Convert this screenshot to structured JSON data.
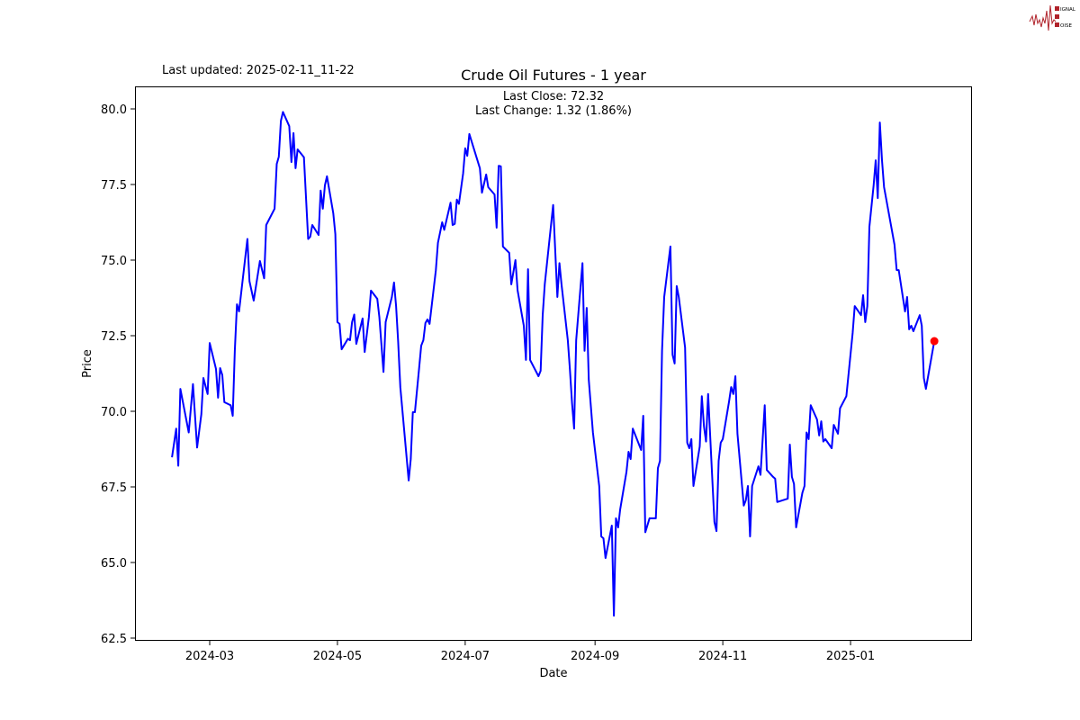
{
  "header": {
    "last_updated": "Last updated: 2025-02-11_11-22",
    "logo_text": "SIGNAL 2 NOISE"
  },
  "chart_data": {
    "type": "line",
    "title": "Crude Oil Futures - 1 year",
    "annotation_lines": [
      "Last Close: 72.32",
      "Last Change: 1.32 (1.86%)"
    ],
    "xlabel": "Date",
    "ylabel": "Price",
    "xlim": [
      "2024-02-05",
      "2025-02-21"
    ],
    "ylim": [
      62.3,
      80.7
    ],
    "x_ticks": [
      "2024-03",
      "2024-05",
      "2024-07",
      "2024-09",
      "2024-11",
      "2025-01"
    ],
    "y_ticks": [
      "62.5",
      "65.0",
      "67.5",
      "70.0",
      "72.5",
      "75.0",
      "77.5",
      "80.0"
    ],
    "grid": false,
    "line_color": "#0000ff",
    "marker_color": "#ff0000",
    "last_point": {
      "date": "2025-02-10",
      "value": 72.32
    },
    "series": [
      {
        "dates": [
          "2024-02-12",
          "2024-02-14",
          "2024-02-15",
          "2024-02-16",
          "2024-02-20",
          "2024-02-22",
          "2024-02-24",
          "2024-02-26",
          "2024-02-27",
          "2024-02-29",
          "2024-03-01",
          "2024-03-04",
          "2024-03-05",
          "2024-03-06",
          "2024-03-07",
          "2024-03-08",
          "2024-03-11",
          "2024-03-12",
          "2024-03-13",
          "2024-03-14",
          "2024-03-15",
          "2024-03-19",
          "2024-03-20",
          "2024-03-22",
          "2024-03-25",
          "2024-03-27",
          "2024-03-28",
          "2024-04-01",
          "2024-04-02",
          "2024-04-03",
          "2024-04-04",
          "2024-04-05",
          "2024-04-08",
          "2024-04-09",
          "2024-04-10",
          "2024-04-11",
          "2024-04-12",
          "2024-04-15",
          "2024-04-17",
          "2024-04-18",
          "2024-04-19",
          "2024-04-22",
          "2024-04-23",
          "2024-04-24",
          "2024-04-25",
          "2024-04-26",
          "2024-04-29",
          "2024-04-30",
          "2024-05-01",
          "2024-05-02",
          "2024-05-03",
          "2024-05-06",
          "2024-05-07",
          "2024-05-08",
          "2024-05-09",
          "2024-05-10",
          "2024-05-13",
          "2024-05-14",
          "2024-05-16",
          "2024-05-17",
          "2024-05-20",
          "2024-05-21",
          "2024-05-23",
          "2024-05-24",
          "2024-05-27",
          "2024-05-28",
          "2024-05-29",
          "2024-05-30",
          "2024-05-31",
          "2024-06-04",
          "2024-06-05",
          "2024-06-06",
          "2024-06-07",
          "2024-06-09",
          "2024-06-10",
          "2024-06-11",
          "2024-06-12",
          "2024-06-13",
          "2024-06-14",
          "2024-06-17",
          "2024-06-18",
          "2024-06-20",
          "2024-06-21",
          "2024-06-24",
          "2024-06-25",
          "2024-06-26",
          "2024-06-27",
          "2024-06-28",
          "2024-06-30",
          "2024-07-01",
          "2024-07-02",
          "2024-07-03",
          "2024-07-08",
          "2024-07-09",
          "2024-07-11",
          "2024-07-12",
          "2024-07-15",
          "2024-07-16",
          "2024-07-17",
          "2024-07-18",
          "2024-07-19",
          "2024-07-22",
          "2024-07-23",
          "2024-07-25",
          "2024-07-26",
          "2024-07-29",
          "2024-07-30",
          "2024-07-31",
          "2024-08-01",
          "2024-08-05",
          "2024-08-06",
          "2024-08-07",
          "2024-08-08",
          "2024-08-12",
          "2024-08-14",
          "2024-08-15",
          "2024-08-16",
          "2024-08-19",
          "2024-08-20",
          "2024-08-21",
          "2024-08-22",
          "2024-08-23",
          "2024-08-26",
          "2024-08-27",
          "2024-08-28",
          "2024-08-29",
          "2024-08-31",
          "2024-09-03",
          "2024-09-04",
          "2024-09-05",
          "2024-09-06",
          "2024-09-09",
          "2024-09-10",
          "2024-09-11",
          "2024-09-12",
          "2024-09-13",
          "2024-09-16",
          "2024-09-17",
          "2024-09-18",
          "2024-09-19",
          "2024-09-23",
          "2024-09-24",
          "2024-09-25",
          "2024-09-27",
          "2024-09-30",
          "2024-10-01",
          "2024-10-02",
          "2024-10-03",
          "2024-10-04",
          "2024-10-07",
          "2024-10-08",
          "2024-10-09",
          "2024-10-10",
          "2024-10-11",
          "2024-10-14",
          "2024-10-15",
          "2024-10-16",
          "2024-10-17",
          "2024-10-18",
          "2024-10-21",
          "2024-10-22",
          "2024-10-23",
          "2024-10-24",
          "2024-10-25",
          "2024-10-28",
          "2024-10-29",
          "2024-10-30",
          "2024-10-31",
          "2024-11-01",
          "2024-11-04",
          "2024-11-05",
          "2024-11-06",
          "2024-11-07",
          "2024-11-08",
          "2024-11-11",
          "2024-11-12",
          "2024-11-13",
          "2024-11-14",
          "2024-11-15",
          "2024-11-18",
          "2024-11-19",
          "2024-11-21",
          "2024-11-22",
          "2024-11-25",
          "2024-11-26",
          "2024-11-27",
          "2024-12-02",
          "2024-12-03",
          "2024-12-04",
          "2024-12-05",
          "2024-12-06",
          "2024-12-09",
          "2024-12-10",
          "2024-12-11",
          "2024-12-12",
          "2024-12-13",
          "2024-12-16",
          "2024-12-17",
          "2024-12-18",
          "2024-12-19",
          "2024-12-20",
          "2024-12-23",
          "2024-12-24",
          "2024-12-26",
          "2024-12-27",
          "2024-12-30",
          "2025-01-02",
          "2025-01-03",
          "2025-01-06",
          "2025-01-07",
          "2025-01-08",
          "2025-01-09",
          "2025-01-10",
          "2025-01-12",
          "2025-01-13",
          "2025-01-14",
          "2025-01-15",
          "2025-01-16",
          "2025-01-17",
          "2025-01-22",
          "2025-01-23",
          "2025-01-24",
          "2025-01-27",
          "2025-01-28",
          "2025-01-29",
          "2025-01-30",
          "2025-01-31",
          "2025-02-03",
          "2025-02-04",
          "2025-02-05",
          "2025-02-06",
          "2025-02-10"
        ],
        "values": [
          68.48,
          69.43,
          68.2,
          70.74,
          69.3,
          70.9,
          68.8,
          69.9,
          71.1,
          70.57,
          72.26,
          71.4,
          70.45,
          71.43,
          71.2,
          70.3,
          70.2,
          69.85,
          72.0,
          73.54,
          73.3,
          75.7,
          74.3,
          73.66,
          74.97,
          74.4,
          76.16,
          76.7,
          78.18,
          78.42,
          79.6,
          79.9,
          79.43,
          78.24,
          79.2,
          78.04,
          78.66,
          78.4,
          75.7,
          75.77,
          76.16,
          75.83,
          77.3,
          76.7,
          77.47,
          77.77,
          76.55,
          75.86,
          72.95,
          72.89,
          72.05,
          72.4,
          72.35,
          72.95,
          73.2,
          72.23,
          73.07,
          71.96,
          73.12,
          73.99,
          73.72,
          73.12,
          71.3,
          72.95,
          73.78,
          74.26,
          73.48,
          72.3,
          70.8,
          67.71,
          68.42,
          69.97,
          69.97,
          71.43,
          72.17,
          72.35,
          72.92,
          73.04,
          72.89,
          74.67,
          75.57,
          76.25,
          76.0,
          76.9,
          76.16,
          76.2,
          77.0,
          76.86,
          77.87,
          78.7,
          78.45,
          79.17,
          78.04,
          77.23,
          77.83,
          77.41,
          77.17,
          76.07,
          78.12,
          78.1,
          75.45,
          75.24,
          74.2,
          75.0,
          74.0,
          72.83,
          71.7,
          74.7,
          71.7,
          71.16,
          71.34,
          73.18,
          74.2,
          76.82,
          73.78,
          74.9,
          74.2,
          72.35,
          71.4,
          70.27,
          69.43,
          72.35,
          74.9,
          72.0,
          73.42,
          71.04,
          69.3,
          67.53,
          65.86,
          65.8,
          65.15,
          66.22,
          63.24,
          66.46,
          66.16,
          66.76,
          68.0,
          68.66,
          68.42,
          69.43,
          68.72,
          69.85,
          66.0,
          66.46,
          66.46,
          68.12,
          68.36,
          72.0,
          73.78,
          75.45,
          71.87,
          71.58,
          74.14,
          73.78,
          72.11,
          68.96,
          68.78,
          69.08,
          67.53,
          68.84,
          70.5,
          69.5,
          69.0,
          70.57,
          66.34,
          66.04,
          68.36,
          68.96,
          69.08,
          70.33,
          70.8,
          70.57,
          71.16,
          69.26,
          66.88,
          67.06,
          67.53,
          65.86,
          67.53,
          68.18,
          67.9,
          70.2,
          68.06,
          67.83,
          67.77,
          67.0,
          67.11,
          68.9,
          67.83,
          67.6,
          66.16,
          67.3,
          67.53,
          69.3,
          69.08,
          70.2,
          69.73,
          69.2,
          69.67,
          69.0,
          69.08,
          68.78,
          69.55,
          69.26,
          70.1,
          70.5,
          72.59,
          73.48,
          73.18,
          73.84,
          72.95,
          73.48,
          76.1,
          77.47,
          78.3,
          77.05,
          79.55,
          78.3,
          77.41,
          75.51,
          74.67,
          74.67,
          73.3,
          73.78,
          72.71,
          72.83,
          72.65,
          73.18,
          72.83,
          71.1,
          70.74,
          72.32
        ]
      }
    ]
  }
}
